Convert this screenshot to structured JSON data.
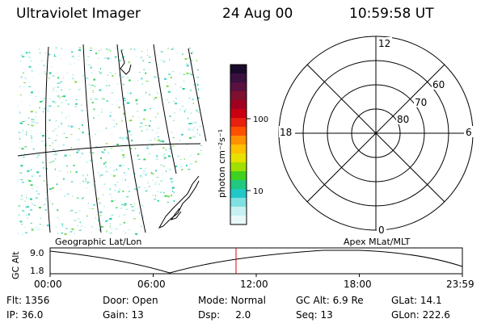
{
  "header": {
    "title": "Ultraviolet Imager",
    "date": "24 Aug 00",
    "time": "10:59:58 UT"
  },
  "colorbar": {
    "unit_label": "photon cm⁻²s⁻¹",
    "ticks": [
      "100",
      "10"
    ],
    "colors": [
      "#1a0a2a",
      "#3a1040",
      "#5a1040",
      "#801030",
      "#a00020",
      "#c80010",
      "#e82010",
      "#ff5000",
      "#ff9000",
      "#ffc000",
      "#e8e000",
      "#a0e000",
      "#40d020",
      "#20c880",
      "#20c8c8",
      "#80e0e0",
      "#c8f0f0",
      "#e8f8f8"
    ]
  },
  "polar": {
    "labels": {
      "top": "12",
      "left": "18",
      "right": "6",
      "bottom": "0"
    },
    "ring_labels": [
      "60",
      "70",
      "80"
    ]
  },
  "timeline": {
    "left_title": "Geographic Lat/Lon",
    "right_title": "Apex MLat/MLT",
    "y_axis_label": "GC Alt",
    "y_ticks": [
      "9.0",
      "1.8"
    ],
    "x_ticks": [
      "00:00",
      "06:00",
      "12:00",
      "18:00",
      "23:59"
    ],
    "marker_color": "#e00000",
    "curve_color": "#000000"
  },
  "info": {
    "flt": "Flt: 1356",
    "door": "Door: Open",
    "mode": "Mode: Normal",
    "gcalt": "GC Alt: 6.9 Re",
    "glat": "GLat:  14.1",
    "ip": "IP: 36.0",
    "gain": "Gain: 13",
    "dsp": "Dsp:     2.0",
    "seq": "Seq: 13",
    "glon": "GLon: 222.6"
  }
}
